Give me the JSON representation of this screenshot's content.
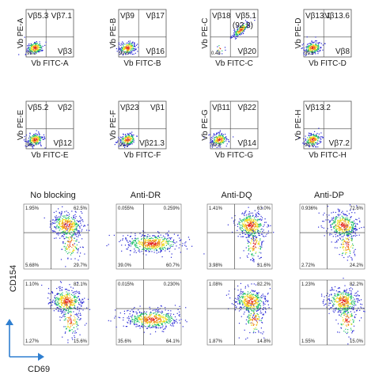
{
  "vb_panels": [
    {
      "y_axis": "Vb PE-A",
      "x_axis": "Vb FITC-A",
      "ul": "Vβ5.3",
      "ur": "Vβ7.1",
      "lr": "Vβ3",
      "ll_value": "99.2",
      "ur_value": ""
    },
    {
      "y_axis": "Vb PE-B",
      "x_axis": "Vb FITC-B",
      "ul": "Vβ9",
      "ur": "Vβ17",
      "lr": "Vβ16",
      "ll_value": "99.6",
      "ur_value": ""
    },
    {
      "y_axis": "Vb PE-C",
      "x_axis": "Vb FITC-C",
      "ul": "Vβ18",
      "ur": "Vβ5.1",
      "lr": "Vβ20",
      "ll_value": "0.48",
      "ur_value": "(92.8)"
    },
    {
      "y_axis": "Vb PE-D",
      "x_axis": "Vb FITC-D",
      "ul": "Vβ13.1",
      "ur": "Vβ13.6",
      "lr": "Vβ8",
      "ll_value": "99.5",
      "ur_value": ""
    },
    {
      "y_axis": "Vb PE-E",
      "x_axis": "Vb FITC-E",
      "ul": "Vβ5.2",
      "ur": "Vβ2",
      "lr": "Vβ12",
      "ll_value": "99.7",
      "ur_value": ""
    },
    {
      "y_axis": "Vb PE-F",
      "x_axis": "Vb FITC-F",
      "ul": "Vβ23",
      "ur": "Vβ1",
      "lr": "Vβ21.3",
      "ll_value": "99.6",
      "ur_value": ""
    },
    {
      "y_axis": "Vb PE-G",
      "x_axis": "Vb FITC-G",
      "ul": "Vβ11",
      "ur": "Vβ22",
      "lr": "Vβ14",
      "ll_value": "99.3",
      "ur_value": ""
    },
    {
      "y_axis": "Vb PE-H",
      "x_axis": "Vb FITC-H",
      "ul": "Vβ13.2",
      "ur": "",
      "lr": "Vβ7.2",
      "ll_value": "99.2",
      "ur_value": ""
    }
  ],
  "blocking": {
    "columns": [
      "No blocking",
      "Anti-DR",
      "Anti-DQ",
      "Anti-DP"
    ],
    "y_axis": "CD154",
    "x_axis": "CD69",
    "rows": [
      [
        {
          "ul": "1.95%",
          "ur": "62.5%",
          "ll": "5.68%",
          "lr": "29.7%"
        },
        {
          "ul": "0.055%",
          "ur": "0.259%",
          "ll": "39.0%",
          "lr": "60.7%"
        },
        {
          "ul": "1.41%",
          "ur": "63.0%",
          "ll": "3.98%",
          "lr": "31.6%"
        },
        {
          "ul": "0.936%",
          "ur": "72.6%",
          "ll": "2.72%",
          "lr": "24.2%"
        }
      ],
      [
        {
          "ul": "1.10%",
          "ur": "82.1%",
          "ll": "1.27%",
          "lr": "15.6%"
        },
        {
          "ul": "0.015%",
          "ur": "0.230%",
          "ll": "35.6%",
          "lr": "64.1%"
        },
        {
          "ul": "1.08%",
          "ur": "82.2%",
          "ll": "1.87%",
          "lr": "14.8%"
        },
        {
          "ul": "1.23%",
          "ur": "82.2%",
          "ll": "1.55%",
          "lr": "15.0%"
        }
      ]
    ]
  },
  "colors": {
    "accent_arrow": "#2f7fd0",
    "dot_low": "#2b2bd6",
    "dot_mid": "#22c06a",
    "dot_high": "#f0e020",
    "dot_peak": "#e22020"
  }
}
